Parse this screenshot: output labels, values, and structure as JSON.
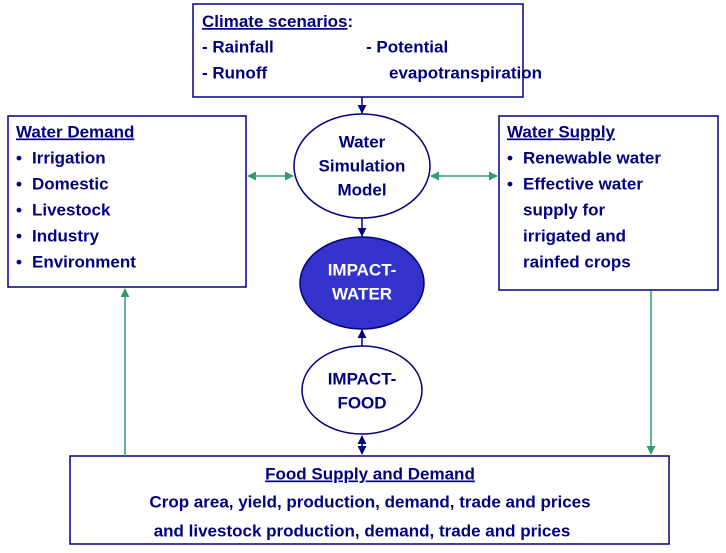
{
  "climate": {
    "title": "Climate scenarios",
    "colon": ":",
    "items": [
      "- Rainfall",
      "- Potential",
      "- Runoff",
      "evapotranspiration"
    ]
  },
  "demand": {
    "title": "Water Demand",
    "items": [
      [
        "Irrigation"
      ],
      [
        "Domestic"
      ],
      [
        "Livestock"
      ],
      [
        "Industry"
      ],
      [
        "Environment"
      ]
    ]
  },
  "supply": {
    "title": "Water Supply",
    "items": [
      [
        "Renewable water"
      ],
      [
        "Effective water",
        "supply for",
        "irrigated and",
        "rainfed crops"
      ]
    ]
  },
  "simulation": {
    "lines": [
      "Water",
      "Simulation",
      "Model"
    ]
  },
  "impact_water": {
    "lines": [
      "IMPACT-",
      "WATER"
    ]
  },
  "impact_food": {
    "lines": [
      "IMPACT-",
      "FOOD"
    ]
  },
  "food": {
    "title": "Food Supply and Demand",
    "lines": [
      "Crop area, yield, production, demand, trade and prices",
      "and livestock production, demand, trade and prices"
    ]
  }
}
